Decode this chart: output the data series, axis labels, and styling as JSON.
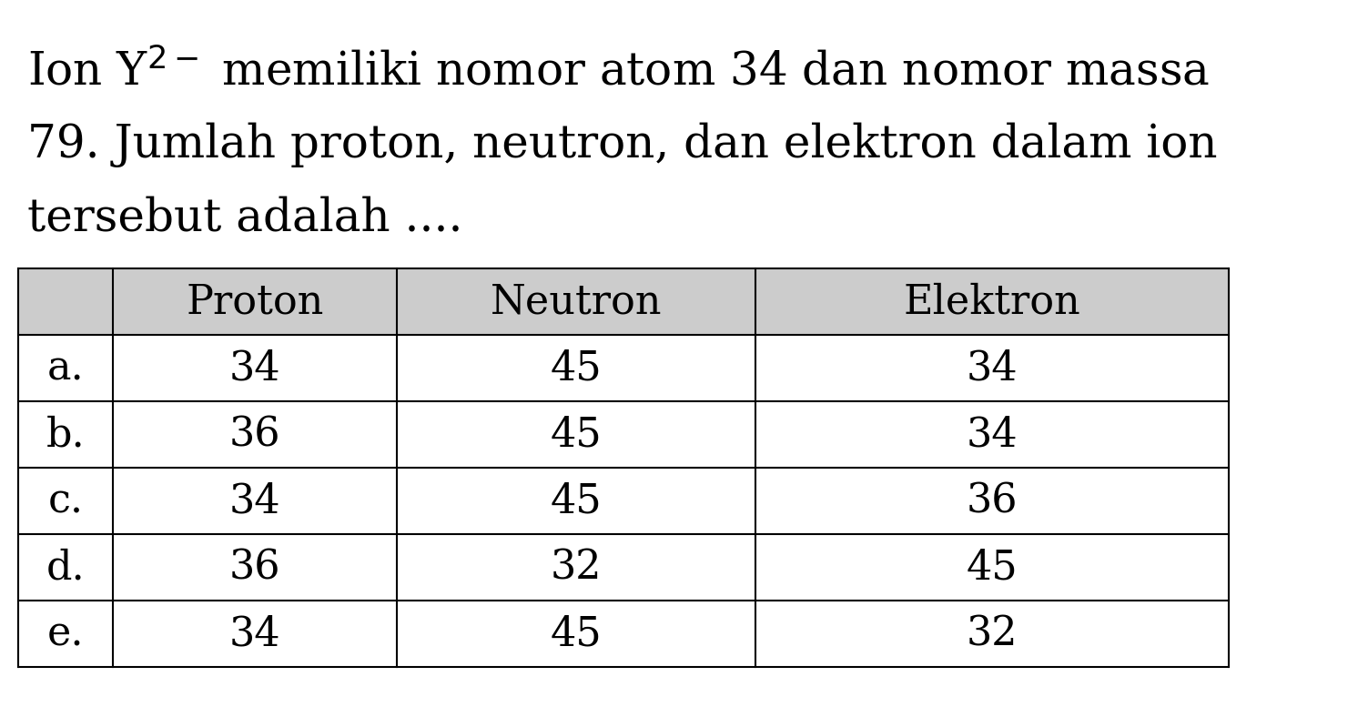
{
  "title_lines": [
    [
      "Ion Y",
      "2−",
      " memiliki nomor atom 34 dan nomor massa"
    ],
    [
      "79. Jumlah proton, neutron, dan elektron dalam ion"
    ],
    [
      "tersebut adalah ...."
    ]
  ],
  "headers": [
    "",
    "Proton",
    "Neutron",
    "Elektron"
  ],
  "rows": [
    [
      "a.",
      "34",
      "45",
      "34"
    ],
    [
      "b.",
      "36",
      "45",
      "34"
    ],
    [
      "c.",
      "34",
      "45",
      "36"
    ],
    [
      "d.",
      "36",
      "32",
      "45"
    ],
    [
      "e.",
      "34",
      "45",
      "32"
    ]
  ],
  "background_color": "#ffffff",
  "header_bg_color": "#cccccc",
  "table_line_color": "#000000",
  "text_color": "#000000",
  "title_fontsize": 36,
  "table_fontsize": 32,
  "fig_width": 15.03,
  "fig_height": 7.77
}
